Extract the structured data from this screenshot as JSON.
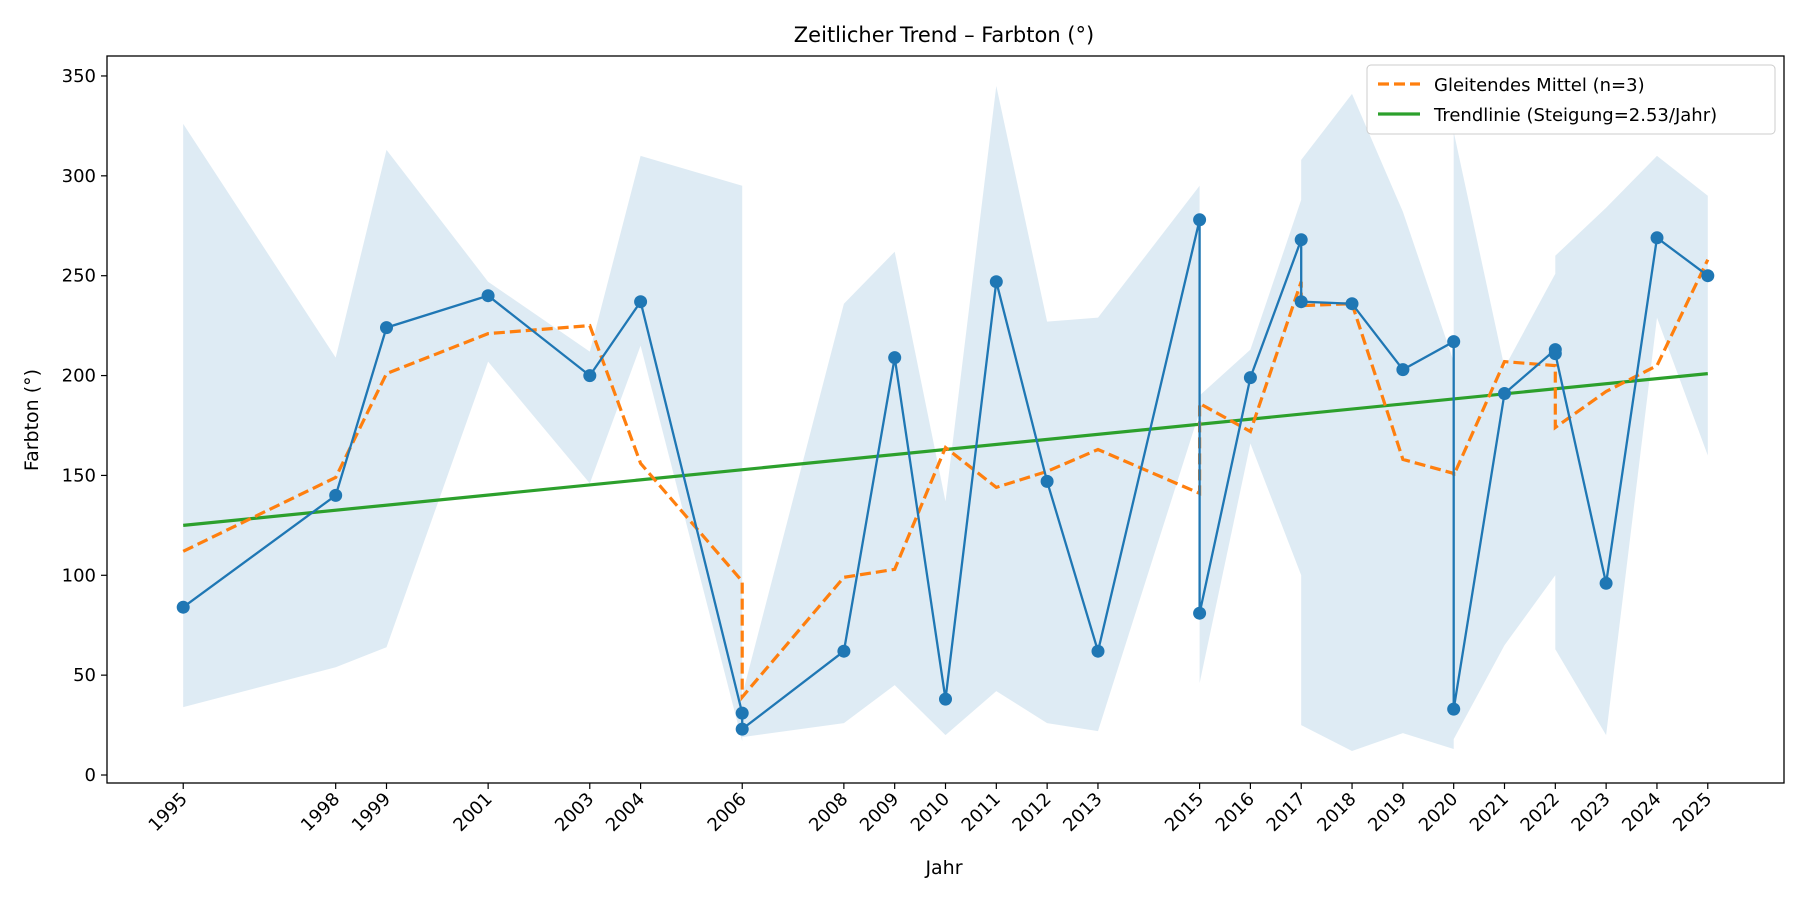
{
  "chart_data": {
    "type": "line",
    "title": "Zeitlicher Trend – Farbton (°)",
    "xlabel": "Jahr",
    "ylabel": "Farbton (°)",
    "xlim": [
      1993.5,
      2026.5
    ],
    "ylim": [
      -4,
      360
    ],
    "yticks": [
      0,
      50,
      100,
      150,
      200,
      250,
      300,
      350
    ],
    "xticks": [
      1995,
      1998,
      1999,
      2001,
      2003,
      2004,
      2006,
      2008,
      2009,
      2010,
      2011,
      2012,
      2013,
      2015,
      2016,
      2017,
      2018,
      2019,
      2020,
      2021,
      2022,
      2023,
      2024,
      2025
    ],
    "grid": false,
    "legend_position": "top-right",
    "colors": {
      "data": "#1f77b4",
      "band": "#1f77b4",
      "moving_average": "#ff7f0e",
      "trend": "#2ca02c"
    },
    "series": [
      {
        "kind": "data",
        "x": [
          1995,
          1998,
          1999,
          2001,
          2003,
          2004,
          2006,
          2006,
          2008,
          2009,
          2010,
          2011,
          2012,
          2013,
          2015,
          2015,
          2016,
          2017,
          2017,
          2018,
          2019,
          2020,
          2020,
          2021,
          2022,
          2022,
          2023,
          2024,
          2025
        ],
        "y": [
          84,
          140,
          224,
          240,
          200,
          237,
          31,
          23,
          62,
          209,
          38,
          247,
          147,
          62,
          278,
          81,
          199,
          268,
          237,
          236,
          203,
          217,
          33,
          191,
          213,
          211,
          96,
          269,
          250
        ]
      },
      {
        "kind": "band",
        "x": [
          1995,
          1998,
          1999,
          2001,
          2003,
          2004,
          2006,
          2006,
          2008,
          2009,
          2010,
          2011,
          2012,
          2013,
          2015,
          2015,
          2016,
          2017,
          2017,
          2018,
          2019,
          2020,
          2020,
          2021,
          2022,
          2022,
          2023,
          2024,
          2025
        ],
        "upper": [
          326,
          209,
          313,
          247,
          212,
          310,
          295,
          40,
          236,
          262,
          137,
          345,
          227,
          229,
          295,
          190,
          213,
          288,
          308,
          341,
          282,
          207,
          322,
          204,
          251,
          260,
          284,
          310,
          290
        ],
        "lower": [
          34,
          54,
          64,
          207,
          146,
          215,
          17,
          19,
          26,
          45,
          20,
          42,
          26,
          22,
          182,
          46,
          166,
          100,
          25,
          12,
          21,
          13,
          18,
          65,
          100,
          63,
          20,
          229,
          160
        ]
      },
      {
        "kind": "moving_average",
        "name": "Gleitendes Mittel (n=3)",
        "x": [
          1995,
          1998,
          1999,
          2001,
          2003,
          2004,
          2006,
          2006,
          2008,
          2009,
          2010,
          2011,
          2012,
          2013,
          2015,
          2015,
          2016,
          2017,
          2017,
          2018,
          2019,
          2020,
          2020,
          2021,
          2022,
          2022,
          2023,
          2024,
          2025
        ],
        "y": [
          112,
          149,
          201,
          221,
          225,
          156,
          97,
          39,
          99,
          103,
          164,
          144,
          152,
          163,
          141,
          186,
          172,
          247,
          235,
          236,
          158,
          151,
          150,
          207,
          205,
          174,
          192,
          205,
          258
        ]
      },
      {
        "kind": "trend",
        "name": "Trendlinie (Steigung=2.53/Jahr)",
        "x": [
          1995,
          2025
        ],
        "y": [
          125,
          201
        ]
      }
    ]
  }
}
